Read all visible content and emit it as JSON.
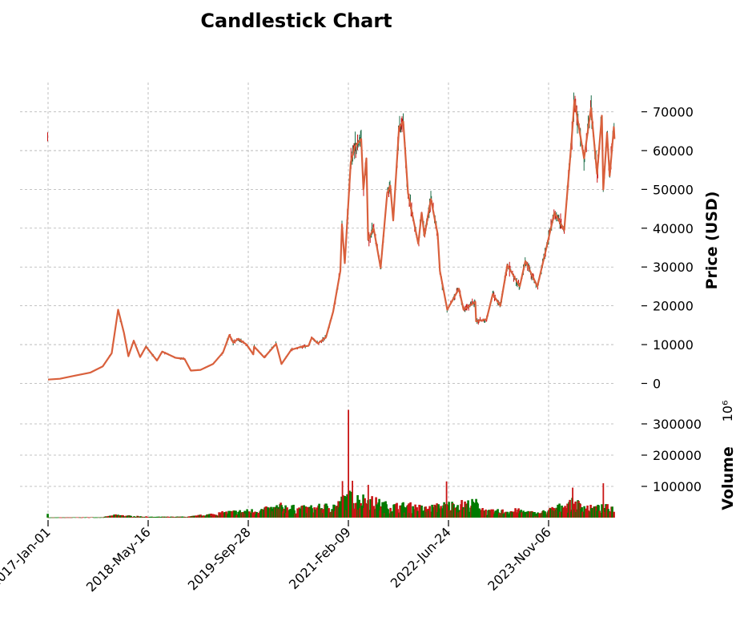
{
  "chart_data": {
    "type": "candlestick",
    "title": "Candlestick Chart",
    "price_panel": {
      "ylabel": "Price (USD)",
      "ylim": [
        -2000,
        76000
      ],
      "yticks": [
        0,
        10000,
        20000,
        30000,
        40000,
        50000,
        60000,
        70000
      ],
      "ytick_labels": [
        "0",
        "10000",
        "20000",
        "30000",
        "40000",
        "50000",
        "60000",
        "70000"
      ]
    },
    "volume_panel": {
      "ylabel": "Volume",
      "scale_label": "10⁶",
      "ylim": [
        0,
        380000
      ],
      "yticks": [
        100000,
        200000,
        300000
      ],
      "ytick_labels": [
        "100000",
        "200000",
        "300000"
      ]
    },
    "x_ticks": [
      "2017-Jan-01",
      "2018-May-16",
      "2019-Sep-28",
      "2021-Feb-09",
      "2022-Jun-24",
      "2023-Nov-06"
    ],
    "x_tick_dates": [
      "2017-01-01",
      "2018-05-16",
      "2019-09-28",
      "2021-02-09",
      "2022-06-24",
      "2023-11-06"
    ],
    "x_range": [
      "2016-12-30",
      "2024-09-30"
    ],
    "grid": true,
    "colors": {
      "up": "#007a00",
      "down": "#c81414",
      "close_line": "#d9603c",
      "wick": "#1f6f4a"
    },
    "price_close_points": [
      [
        "2017-01-01",
        1000
      ],
      [
        "2017-03-01",
        1200
      ],
      [
        "2017-05-15",
        2000
      ],
      [
        "2017-08-01",
        2800
      ],
      [
        "2017-10-01",
        4400
      ],
      [
        "2017-11-15",
        7800
      ],
      [
        "2017-12-17",
        19000
      ],
      [
        "2018-01-15",
        13000
      ],
      [
        "2018-02-06",
        7000
      ],
      [
        "2018-03-05",
        11000
      ],
      [
        "2018-04-06",
        6800
      ],
      [
        "2018-05-05",
        9500
      ],
      [
        "2018-06-29",
        5900
      ],
      [
        "2018-07-25",
        8200
      ],
      [
        "2018-09-30",
        6600
      ],
      [
        "2018-11-14",
        6300
      ],
      [
        "2018-12-15",
        3300
      ],
      [
        "2019-02-01",
        3500
      ],
      [
        "2019-04-05",
        5000
      ],
      [
        "2019-05-25",
        8000
      ],
      [
        "2019-06-26",
        12500
      ],
      [
        "2019-07-15",
        10500
      ],
      [
        "2019-08-10",
        11500
      ],
      [
        "2019-09-20",
        10000
      ],
      [
        "2019-10-23",
        7500
      ],
      [
        "2019-10-27",
        9500
      ],
      [
        "2019-12-17",
        6700
      ],
      [
        "2020-02-14",
        10200
      ],
      [
        "2020-03-12",
        5000
      ],
      [
        "2020-04-30",
        8700
      ],
      [
        "2020-06-15",
        9400
      ],
      [
        "2020-07-25",
        9700
      ],
      [
        "2020-08-10",
        11800
      ],
      [
        "2020-09-10",
        10300
      ],
      [
        "2020-10-20",
        11900
      ],
      [
        "2020-11-25",
        18500
      ],
      [
        "2020-12-31",
        29000
      ],
      [
        "2021-01-08",
        41000
      ],
      [
        "2021-01-22",
        31000
      ],
      [
        "2021-02-21",
        57000
      ],
      [
        "2021-03-13",
        61000
      ],
      [
        "2021-04-14",
        63000
      ],
      [
        "2021-04-25",
        50000
      ],
      [
        "2021-05-10",
        58000
      ],
      [
        "2021-05-19",
        37000
      ],
      [
        "2021-06-15",
        40000
      ],
      [
        "2021-07-20",
        29800
      ],
      [
        "2021-08-22",
        49000
      ],
      [
        "2021-09-06",
        51000
      ],
      [
        "2021-09-21",
        42000
      ],
      [
        "2021-10-20",
        66000
      ],
      [
        "2021-11-10",
        67500
      ],
      [
        "2021-12-04",
        49000
      ],
      [
        "2022-01-24",
        36000
      ],
      [
        "2022-02-10",
        44000
      ],
      [
        "2022-02-24",
        38000
      ],
      [
        "2022-03-28",
        47500
      ],
      [
        "2022-05-01",
        38500
      ],
      [
        "2022-05-12",
        29000
      ],
      [
        "2022-06-18",
        19000
      ],
      [
        "2022-08-15",
        24400
      ],
      [
        "2022-09-07",
        19000
      ],
      [
        "2022-11-05",
        21000
      ],
      [
        "2022-11-09",
        16000
      ],
      [
        "2022-12-31",
        16500
      ],
      [
        "2023-01-31",
        23000
      ],
      [
        "2023-03-10",
        20000
      ],
      [
        "2023-04-14",
        30500
      ],
      [
        "2023-06-15",
        25000
      ],
      [
        "2023-07-13",
        31500
      ],
      [
        "2023-09-11",
        25000
      ],
      [
        "2023-10-24",
        34500
      ],
      [
        "2023-12-05",
        44000
      ],
      [
        "2024-01-23",
        39500
      ],
      [
        "2024-02-28",
        62000
      ],
      [
        "2024-03-14",
        73000
      ],
      [
        "2024-05-01",
        58000
      ],
      [
        "2024-06-05",
        71000
      ],
      [
        "2024-07-05",
        54000
      ],
      [
        "2024-07-29",
        69000
      ],
      [
        "2024-08-05",
        50000
      ],
      [
        "2024-08-24",
        64500
      ],
      [
        "2024-09-06",
        53500
      ],
      [
        "2024-09-27",
        66000
      ],
      [
        "2024-09-30",
        63000
      ]
    ],
    "volume_profile_points": [
      [
        "2017-01-01",
        500
      ],
      [
        "2017-10-01",
        1500
      ],
      [
        "2017-12-10",
        9000
      ],
      [
        "2018-02-01",
        6000
      ],
      [
        "2018-06-01",
        2500
      ],
      [
        "2018-12-01",
        3000
      ],
      [
        "2019-04-01",
        12000
      ],
      [
        "2019-07-01",
        19000
      ],
      [
        "2019-10-01",
        22000
      ],
      [
        "2020-01-01",
        28000
      ],
      [
        "2020-03-12",
        38000
      ],
      [
        "2020-06-01",
        30000
      ],
      [
        "2020-09-01",
        33000
      ],
      [
        "2020-12-15",
        42000
      ],
      [
        "2021-02-01",
        70000
      ],
      [
        "2021-05-15",
        60000
      ],
      [
        "2021-09-01",
        38000
      ],
      [
        "2021-12-01",
        40000
      ],
      [
        "2022-03-01",
        30000
      ],
      [
        "2022-06-15",
        42000
      ],
      [
        "2022-11-10",
        48000
      ],
      [
        "2023-01-01",
        20000
      ],
      [
        "2023-06-01",
        24000
      ],
      [
        "2023-09-15",
        14000
      ],
      [
        "2023-12-01",
        30000
      ],
      [
        "2024-03-10",
        50000
      ],
      [
        "2024-06-01",
        32000
      ],
      [
        "2024-09-30",
        35000
      ]
    ],
    "volume_spikes": [
      [
        "2021-02-09",
        345000
      ],
      [
        "2021-03-01",
        118000
      ],
      [
        "2021-01-10",
        117000
      ],
      [
        "2021-05-19",
        105000
      ],
      [
        "2022-06-14",
        116000
      ],
      [
        "2024-03-05",
        96000
      ],
      [
        "2024-08-05",
        110000
      ]
    ]
  }
}
